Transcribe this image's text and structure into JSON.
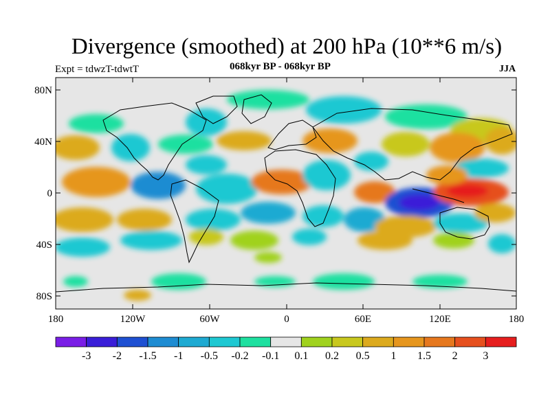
{
  "title": "Divergence (smoothed) at 200 hPa (10**6 m/s)",
  "subtitle_left": "Expt = tdwzT-tdwtT",
  "subtitle_center": "068kyr BP - 068kyr BP",
  "subtitle_right": "JJA",
  "lat_ticks": [
    "80N",
    "40N",
    "0",
    "40S",
    "80S"
  ],
  "lon_ticks": [
    "180",
    "120W",
    "60W",
    "0",
    "60E",
    "120E",
    "180"
  ],
  "colorbar": {
    "colors": [
      "#7a1ee6",
      "#3a1ed8",
      "#1e50d2",
      "#1e8cd2",
      "#1eaad2",
      "#1ec8d2",
      "#1ee0a0",
      "#e6e6e6",
      "#a0d21e",
      "#c8c81e",
      "#dcaa1e",
      "#e6961e",
      "#e6781e",
      "#e6501e",
      "#e61e1e"
    ],
    "labels": [
      "-3",
      "-2",
      "-1.5",
      "-1",
      "-0.5",
      "-0.2",
      "-0.1",
      "0.1",
      "0.2",
      "0.5",
      "1",
      "1.5",
      "2",
      "3"
    ]
  }
}
